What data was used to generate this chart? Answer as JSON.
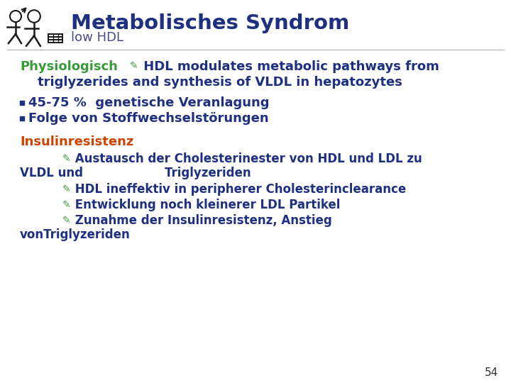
{
  "title": "Metabolisches Syndrom",
  "subtitle": "low HDL",
  "title_color": "#1F3080",
  "subtitle_color": "#4A4A8A",
  "background_color": "#FFFFFF",
  "page_number": "54",
  "physiologisch_label": "Physiologisch",
  "physiologisch_color": "#3A9A3A",
  "physio_text1": " HDL modulates metabolic pathways from",
  "physio_text2": "    triglyzerides and synthesis of VLDL in hepatozytes",
  "body_color": "#1F3080",
  "bullet1": "45-75 %  genetische Veranlagung",
  "bullet2": "Folge von Stoffwechselstörungen",
  "insulinresistenz_label": "Insulinresistenz",
  "insulinresistenz_color": "#CC4400",
  "ins_line1": " Austausch der Cholesterinester von HDL und LDL zu",
  "ins_line2": "VLDL und                    Triglyzeriden",
  "ins_line3": " HDL ineffektiv in peripherer Cholesterinclearance",
  "ins_line4": " Entwicklung noch kleinerer LDL Partikel",
  "ins_line5": " Zunahme der Insulinresistenz, Anstieg",
  "ins_line6": "vonTriglyzeriden",
  "arrow_color": "#3A9A3A",
  "icon_color": "#1A1A1A"
}
